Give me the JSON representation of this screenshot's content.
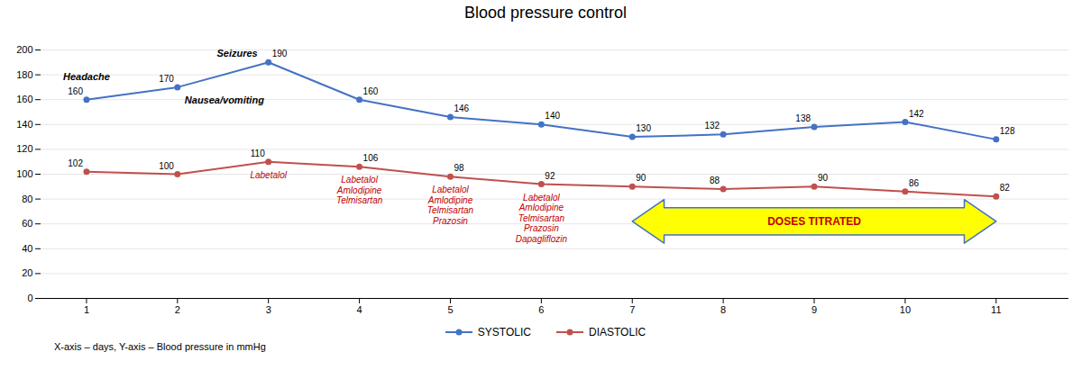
{
  "chart_data": {
    "type": "line",
    "title": "Blood pressure control",
    "note": "X-axis – days, Y-axis – Blood pressure in mmHg",
    "x": [
      1,
      2,
      3,
      4,
      5,
      6,
      7,
      8,
      9,
      10,
      11
    ],
    "series": [
      {
        "name": "SYSTOLIC",
        "color": "#4472C4",
        "marker": "circle",
        "values": [
          160,
          170,
          190,
          160,
          146,
          140,
          130,
          132,
          138,
          142,
          128
        ]
      },
      {
        "name": "DIASTOLIC",
        "color": "#C0504D",
        "marker": "circle",
        "values": [
          102,
          100,
          110,
          106,
          98,
          92,
          90,
          88,
          90,
          86,
          82
        ]
      }
    ],
    "xlim": [
      0.5,
      11.8
    ],
    "xticks": [
      1,
      2,
      3,
      4,
      5,
      6,
      7,
      8,
      9,
      10,
      11
    ],
    "ylim": [
      0,
      200
    ],
    "yticks": [
      0,
      20,
      40,
      60,
      80,
      100,
      120,
      140,
      160,
      180,
      200
    ],
    "grid": true,
    "legend": "bottom",
    "data_labels": true,
    "annotations": [
      {
        "text": "Headache",
        "x": 1,
        "series": "SYSTOLIC"
      },
      {
        "text": "Nausea/vomiting",
        "x": 2,
        "series": "SYSTOLIC"
      },
      {
        "text": "Seizures",
        "x": 3,
        "series": "SYSTOLIC"
      }
    ],
    "medications": {
      "color": "#C00000",
      "series": "DIASTOLIC",
      "items": [
        {
          "x": 3,
          "lines": [
            "Labetalol"
          ]
        },
        {
          "x": 4,
          "lines": [
            "Labetalol",
            "Amlodipine",
            "Telmisartan"
          ]
        },
        {
          "x": 5,
          "lines": [
            "Labetalol",
            "Amlodipine",
            "Telmisartan",
            "Prazosin"
          ]
        },
        {
          "x": 6,
          "lines": [
            "Labetalol",
            "Amlodipine",
            "Telmisartan",
            "Prazosin",
            "Dapagliflozin"
          ]
        }
      ]
    },
    "arrow": {
      "text": "DOSES TITRATED",
      "x_start": 7.0,
      "x_end": 11.0,
      "y": 62,
      "color": "#C00000",
      "fill": "#FFFF00",
      "edge_color": "#4472C4"
    }
  }
}
